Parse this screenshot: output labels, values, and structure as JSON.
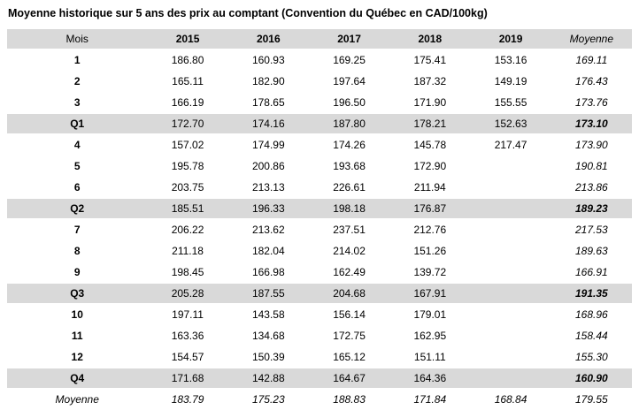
{
  "title": "Moyenne historique sur 5 ans des prix au comptant (Convention du Québec en CAD/100kg)",
  "colors": {
    "header_bg": "#d9d9d9",
    "quarter_row_bg": "#d9d9d9"
  },
  "chart_data": {
    "type": "table",
    "title": "Moyenne historique sur 5 ans des prix au comptant (Convention du Québec en CAD/100kg)",
    "columns": [
      "Mois",
      "2015",
      "2016",
      "2017",
      "2018",
      "2019",
      "Moyenne"
    ],
    "rows": [
      {
        "label": "1",
        "type": "month",
        "values": [
          "186.80",
          "160.93",
          "169.25",
          "175.41",
          "153.16",
          "169.11"
        ]
      },
      {
        "label": "2",
        "type": "month",
        "values": [
          "165.11",
          "182.90",
          "197.64",
          "187.32",
          "149.19",
          "176.43"
        ]
      },
      {
        "label": "3",
        "type": "month",
        "values": [
          "166.19",
          "178.65",
          "196.50",
          "171.90",
          "155.55",
          "173.76"
        ]
      },
      {
        "label": "Q1",
        "type": "quarter",
        "values": [
          "172.70",
          "174.16",
          "187.80",
          "178.21",
          "152.63",
          "173.10"
        ]
      },
      {
        "label": "4",
        "type": "month",
        "values": [
          "157.02",
          "174.99",
          "174.26",
          "145.78",
          "217.47",
          "173.90"
        ]
      },
      {
        "label": "5",
        "type": "month",
        "values": [
          "195.78",
          "200.86",
          "193.68",
          "172.90",
          "",
          "190.81"
        ]
      },
      {
        "label": "6",
        "type": "month",
        "values": [
          "203.75",
          "213.13",
          "226.61",
          "211.94",
          "",
          "213.86"
        ]
      },
      {
        "label": "Q2",
        "type": "quarter",
        "values": [
          "185.51",
          "196.33",
          "198.18",
          "176.87",
          "",
          "189.23"
        ]
      },
      {
        "label": "7",
        "type": "month",
        "values": [
          "206.22",
          "213.62",
          "237.51",
          "212.76",
          "",
          "217.53"
        ]
      },
      {
        "label": "8",
        "type": "month",
        "values": [
          "211.18",
          "182.04",
          "214.02",
          "151.26",
          "",
          "189.63"
        ]
      },
      {
        "label": "9",
        "type": "month",
        "values": [
          "198.45",
          "166.98",
          "162.49",
          "139.72",
          "",
          "166.91"
        ]
      },
      {
        "label": "Q3",
        "type": "quarter",
        "values": [
          "205.28",
          "187.55",
          "204.68",
          "167.91",
          "",
          "191.35"
        ]
      },
      {
        "label": "10",
        "type": "month",
        "values": [
          "197.11",
          "143.58",
          "156.14",
          "179.01",
          "",
          "168.96"
        ]
      },
      {
        "label": "11",
        "type": "month",
        "values": [
          "163.36",
          "134.68",
          "172.75",
          "162.95",
          "",
          "158.44"
        ]
      },
      {
        "label": "12",
        "type": "month",
        "values": [
          "154.57",
          "150.39",
          "165.12",
          "151.11",
          "",
          "155.30"
        ]
      },
      {
        "label": "Q4",
        "type": "quarter",
        "values": [
          "171.68",
          "142.88",
          "164.67",
          "164.36",
          "",
          "160.90"
        ]
      },
      {
        "label": "Moyenne",
        "type": "average",
        "values": [
          "183.79",
          "175.23",
          "188.83",
          "171.84",
          "168.84",
          "179.55"
        ]
      }
    ]
  }
}
